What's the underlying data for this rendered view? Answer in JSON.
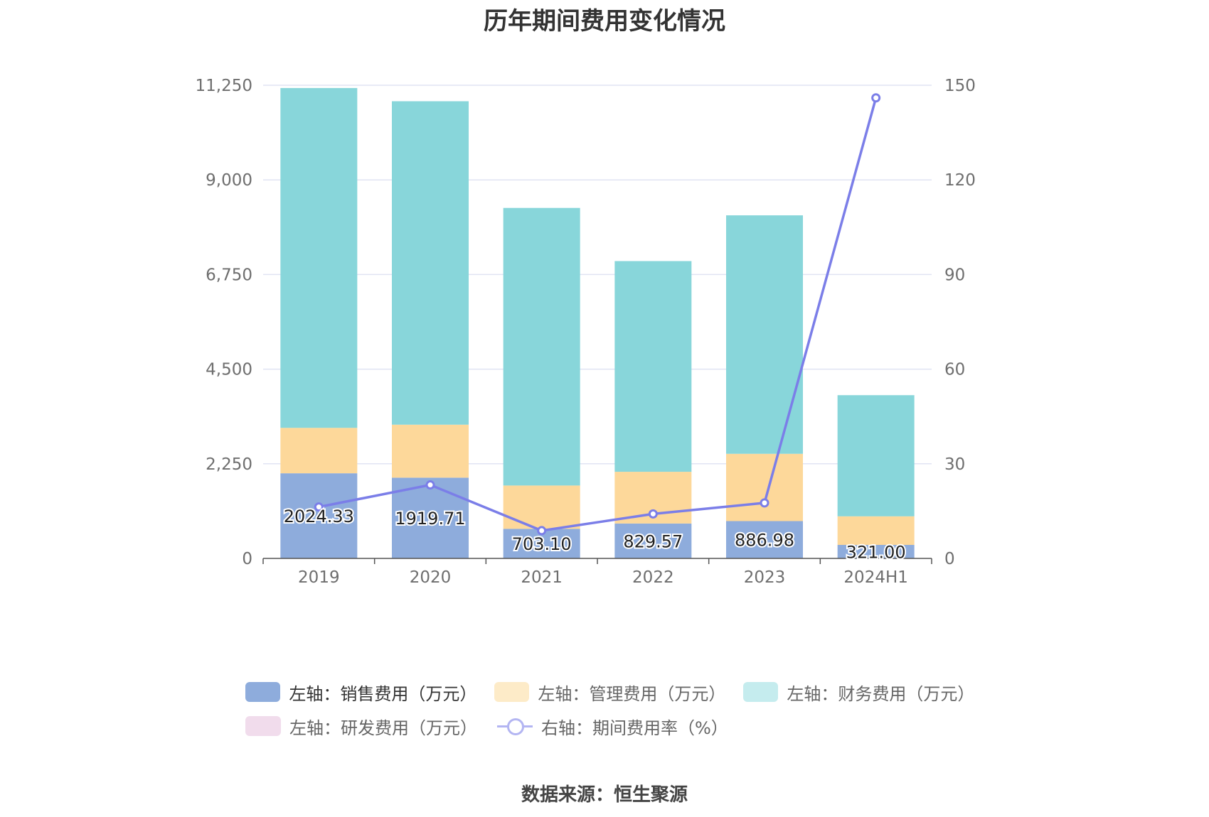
{
  "chart_data": {
    "type": "bar",
    "title": "历年期间费用变化情况",
    "categories": [
      "2019",
      "2020",
      "2021",
      "2022",
      "2023",
      "2024H1"
    ],
    "stacked": true,
    "y_left": {
      "ylim": [
        0,
        11250
      ],
      "ticks": [
        "0",
        "2,250",
        "4,500",
        "6,750",
        "9,000",
        "11,250"
      ]
    },
    "y_right": {
      "ylim": [
        0,
        150
      ],
      "ticks": [
        "0",
        "30",
        "60",
        "90",
        "120",
        "150"
      ]
    },
    "grid": true,
    "legend_position": "bottom",
    "series": [
      {
        "name": "左轴：销售费用（万元）",
        "axis": "left",
        "type": "bar",
        "color": "#8eacdc",
        "values": [
          2024.33,
          1919.71,
          703.1,
          829.57,
          886.98,
          321.0
        ],
        "labels": [
          "2024.33",
          "1919.71",
          "703.10",
          "829.57",
          "886.98",
          "321.00"
        ]
      },
      {
        "name": "左轴：管理费用（万元）",
        "axis": "left",
        "type": "bar",
        "color": "#fdd89a",
        "values": [
          1080,
          1260,
          1030,
          1230,
          1600,
          680
        ]
      },
      {
        "name": "左轴：财务费用（万元）",
        "axis": "left",
        "type": "bar",
        "color": "#88d6da",
        "values": [
          8080,
          7690,
          6600,
          5010,
          5670,
          2880
        ]
      },
      {
        "name": "左轴：研发费用（万元）",
        "axis": "left",
        "type": "bar",
        "color": "#f1dcec",
        "values": [
          0,
          0,
          0,
          0,
          0,
          0
        ]
      },
      {
        "name": "右轴：期间费用率（%）",
        "axis": "right",
        "type": "line",
        "color": "#7b7ee8",
        "values": [
          16.3,
          23.3,
          8.8,
          14.1,
          17.6,
          146.0
        ]
      }
    ]
  },
  "source": "数据来源：恒生聚源"
}
